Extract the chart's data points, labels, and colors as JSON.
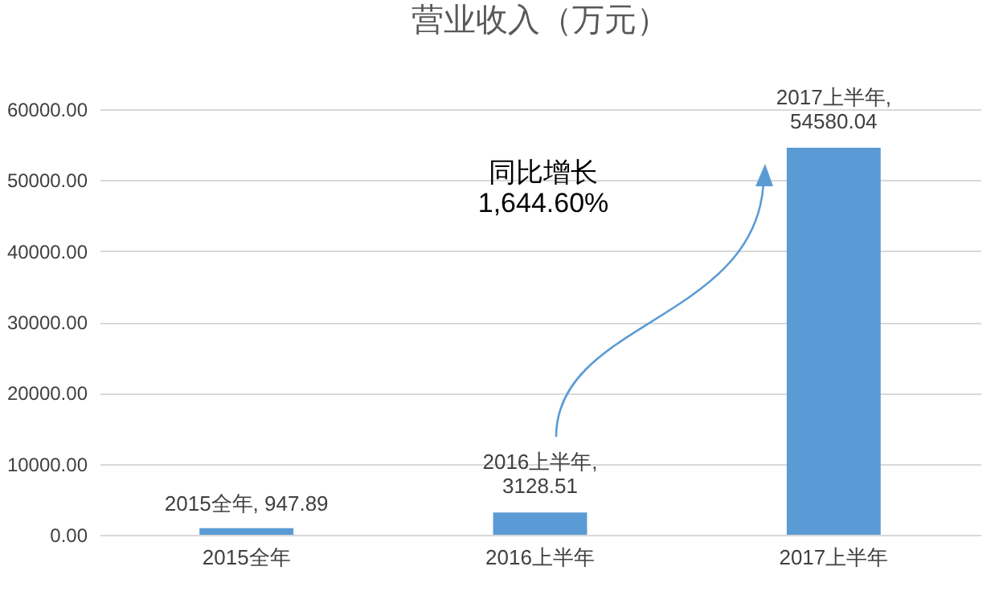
{
  "chart_data": {
    "type": "bar",
    "title": "营业收入（万元）",
    "categories": [
      "2015全年",
      "2016上半年",
      "2017上半年"
    ],
    "values": [
      947.89,
      3128.51,
      54580.04
    ],
    "color": "#5b9bd5",
    "value_labels": [
      "2015全年, 947.89",
      "2016上半年,\n3128.51",
      "2017上半年,\n54580.04"
    ],
    "ylim": [
      0,
      60000
    ],
    "yticks": [
      {
        "value": 0,
        "label": "0.00"
      },
      {
        "value": 10000,
        "label": "10000.00"
      },
      {
        "value": 20000,
        "label": "20000.00"
      },
      {
        "value": 30000,
        "label": "30000.00"
      },
      {
        "value": 40000,
        "label": "40000.00"
      },
      {
        "value": 50000,
        "label": "50000.00"
      },
      {
        "value": 60000,
        "label": "60000.00"
      }
    ],
    "grid": "y",
    "annotations": [
      "同比增长\n1,644.60%"
    ]
  }
}
